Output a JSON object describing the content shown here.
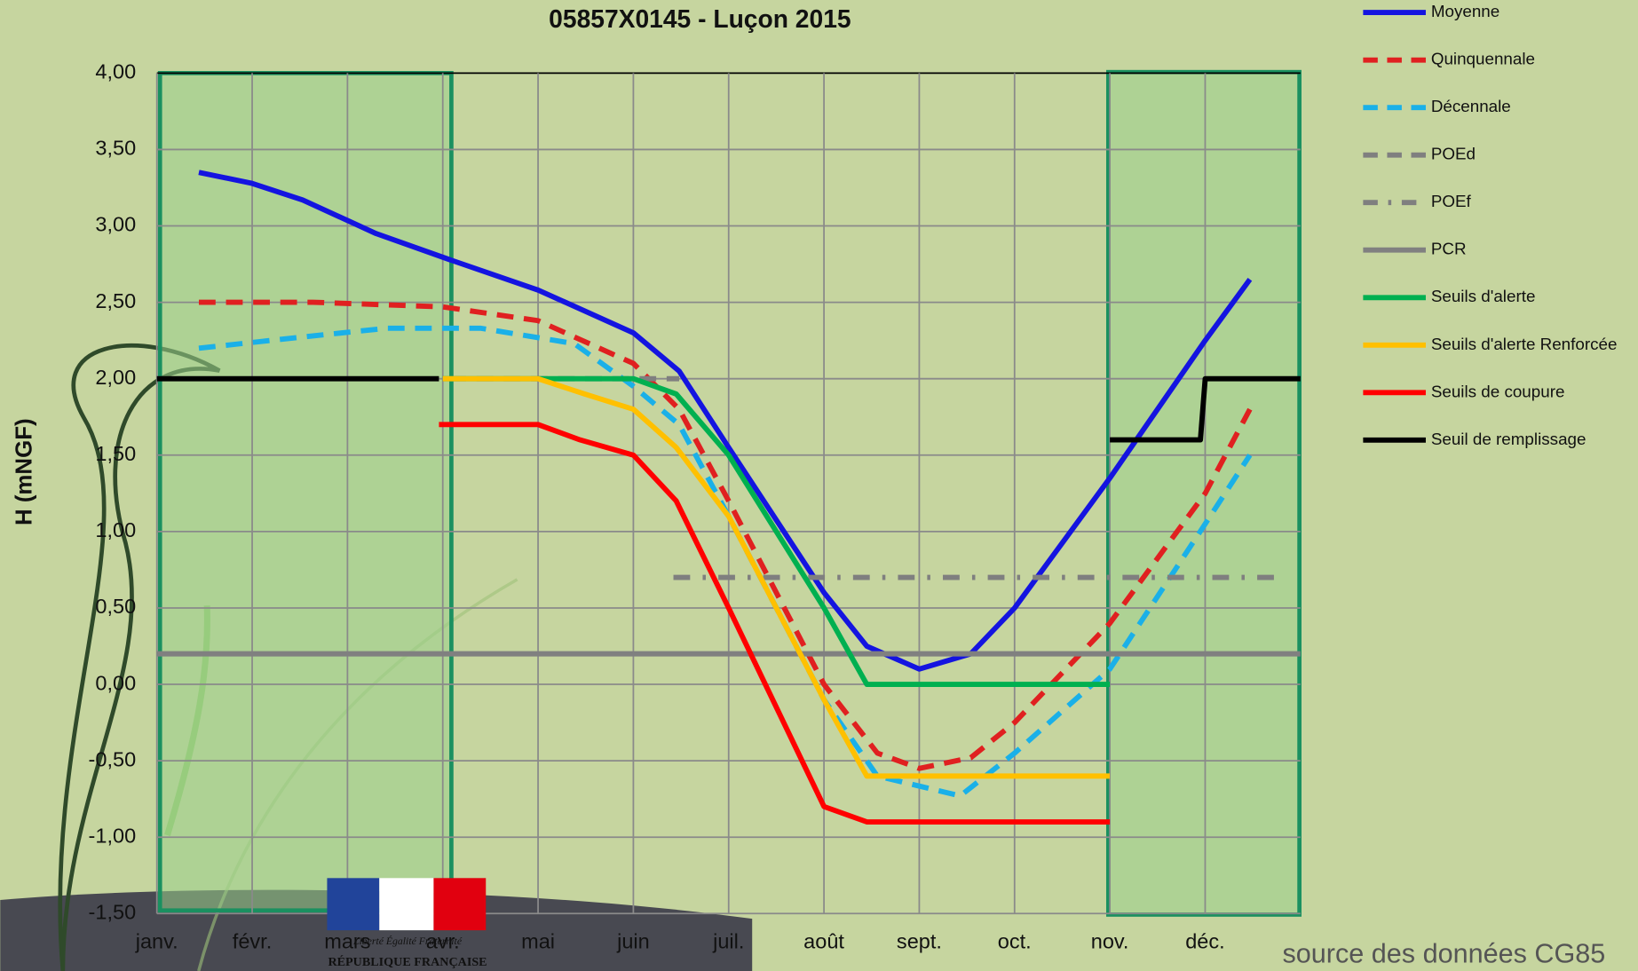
{
  "chart_data": {
    "type": "line",
    "title": "05857X0145 - Luçon 2015",
    "y_label": "H (mNGF)",
    "annotations": [
      "source des données CG85",
      "Liberté Égalité Fraternité",
      "RÉPUBLIQUE FRANÇAISE"
    ],
    "xlim": [
      0,
      12
    ],
    "xticks": [
      {
        "value": 0,
        "label": "janv."
      },
      {
        "value": 1,
        "label": "févr."
      },
      {
        "value": 2,
        "label": "mars"
      },
      {
        "value": 3,
        "label": "avr."
      },
      {
        "value": 4,
        "label": "mai"
      },
      {
        "value": 5,
        "label": "juin"
      },
      {
        "value": 6,
        "label": "juil."
      },
      {
        "value": 7,
        "label": "août"
      },
      {
        "value": 8,
        "label": "sept."
      },
      {
        "value": 9,
        "label": "oct."
      },
      {
        "value": 10,
        "label": "nov."
      },
      {
        "value": 11,
        "label": "déc."
      }
    ],
    "ylim": [
      -1.5,
      4
    ],
    "yticks": [
      {
        "value": 4,
        "label": "4,00"
      },
      {
        "value": 3.5,
        "label": "3,50"
      },
      {
        "value": 3,
        "label": "3,00"
      },
      {
        "value": 2.5,
        "label": "2,50"
      },
      {
        "value": 2,
        "label": "2,00"
      },
      {
        "value": 1.5,
        "label": "1,50"
      },
      {
        "value": 1,
        "label": "1,00"
      },
      {
        "value": 0.5,
        "label": "0,50"
      },
      {
        "value": 0,
        "label": "0,00"
      },
      {
        "value": -0.5,
        "label": "-0,50"
      },
      {
        "value": -1,
        "label": "-1,00"
      },
      {
        "value": -1.5,
        "label": "-1,50"
      }
    ],
    "grid": true,
    "legend": "right",
    "series": [
      {
        "name": "Moyenne",
        "color": "#1414e0",
        "style": "solid",
        "x": [
          0.44,
          0.99,
          1.53,
          2.3,
          3.07,
          4.0,
          5.0,
          5.48,
          6.0,
          7.0,
          7.45,
          8.0,
          8.54,
          9.0,
          10.0,
          11.0,
          11.47
        ],
        "values": [
          3.35,
          3.28,
          3.17,
          2.95,
          2.78,
          2.58,
          2.3,
          2.05,
          1.55,
          0.6,
          0.25,
          0.1,
          0.2,
          0.5,
          1.35,
          2.25,
          2.65
        ]
      },
      {
        "name": "Quinquennale",
        "color": "#e02020",
        "style": "dashed",
        "x": [
          0.44,
          1.64,
          3.0,
          4.0,
          5.0,
          5.48,
          6.0,
          7.0,
          7.56,
          8.0,
          8.54,
          9.0,
          10.0,
          11.0,
          11.47
        ],
        "values": [
          2.5,
          2.5,
          2.47,
          2.38,
          2.1,
          1.8,
          1.2,
          0.0,
          -0.45,
          -0.55,
          -0.48,
          -0.25,
          0.4,
          1.25,
          1.8
        ]
      },
      {
        "name": "Décennale",
        "color": "#1ab0e8",
        "style": "dashed",
        "x": [
          0.44,
          1.64,
          2.41,
          3.4,
          4.38,
          5.0,
          5.48,
          6.0,
          7.0,
          7.56,
          8.43,
          9.0,
          10.0,
          11.0,
          11.47
        ],
        "values": [
          2.2,
          2.28,
          2.33,
          2.33,
          2.23,
          1.95,
          1.7,
          1.1,
          -0.1,
          -0.6,
          -0.73,
          -0.45,
          0.1,
          1.05,
          1.5
        ]
      },
      {
        "name": "POEd",
        "color": "#7f7f7f",
        "style": "dashed",
        "x": [
          3.07,
          5.48
        ],
        "values": [
          2.0,
          2.0
        ]
      },
      {
        "name": "POEf",
        "color": "#7f7f7f",
        "style": "dashdot",
        "x": [
          5.42,
          11.83
        ],
        "values": [
          0.7,
          0.7
        ]
      },
      {
        "name": "PCR",
        "color": "#808080",
        "style": "solid",
        "x": [
          0,
          12
        ],
        "values": [
          0.2,
          0.2
        ]
      },
      {
        "name": "Seuils d'alerte",
        "color": "#00b050",
        "style": "solid",
        "x": [
          3.0,
          5.0,
          5.45,
          6.0,
          7.0,
          7.45,
          10.0
        ],
        "values": [
          2.0,
          2.0,
          1.9,
          1.5,
          0.5,
          0.0,
          0.0
        ]
      },
      {
        "name": "Seuils d'alerte Renforcée",
        "color": "#ffc000",
        "style": "solid",
        "x": [
          3.0,
          4.0,
          4.49,
          5.0,
          5.45,
          6.0,
          7.0,
          7.45,
          10.0
        ],
        "values": [
          2.0,
          2.0,
          1.9,
          1.8,
          1.55,
          1.1,
          -0.1,
          -0.6,
          -0.6
        ]
      },
      {
        "name": "Seuils de coupure",
        "color": "#ff0000",
        "style": "solid",
        "x": [
          2.96,
          4.0,
          4.44,
          5.0,
          5.45,
          6.0,
          7.0,
          7.45,
          10.0
        ],
        "values": [
          1.7,
          1.7,
          1.6,
          1.5,
          1.2,
          0.5,
          -0.8,
          -0.9,
          -0.9
        ]
      },
      {
        "name": "Seuil de remplissage",
        "color": "#000000",
        "style": "solid",
        "x": [
          0,
          2.96,
          5.0,
          10.0,
          10.95,
          11.0,
          12.0
        ],
        "values": [
          2.0,
          2.0,
          null,
          1.6,
          1.6,
          2.0,
          2.0
        ]
      }
    ]
  }
}
